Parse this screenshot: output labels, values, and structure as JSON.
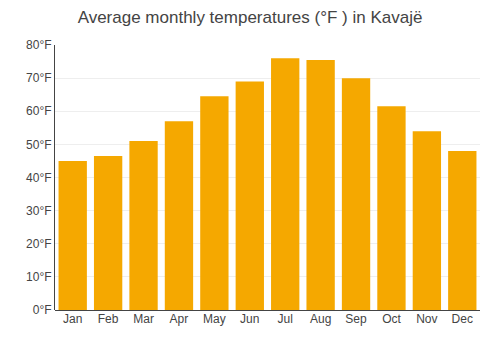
{
  "chart_data": {
    "type": "bar",
    "title": "Average monthly temperatures (°F ) in Kavajë",
    "categories": [
      "Jan",
      "Feb",
      "Mar",
      "Apr",
      "May",
      "Jun",
      "Jul",
      "Aug",
      "Sep",
      "Oct",
      "Nov",
      "Dec"
    ],
    "values": [
      45.0,
      46.5,
      51.0,
      57.0,
      64.5,
      69.0,
      76.0,
      75.5,
      70.0,
      61.5,
      54.0,
      48.0
    ],
    "color": "#F5A800",
    "ylim": [
      0,
      80
    ],
    "yticks": [
      {
        "value": 0,
        "label": "0°F"
      },
      {
        "value": 10,
        "label": "10°F"
      },
      {
        "value": 20,
        "label": "20°F"
      },
      {
        "value": 30,
        "label": "30°F"
      },
      {
        "value": 40,
        "label": "40°F"
      },
      {
        "value": 50,
        "label": "50°F"
      },
      {
        "value": 60,
        "label": "60°F"
      },
      {
        "value": 70,
        "label": "70°F"
      },
      {
        "value": 80,
        "label": "80°F"
      }
    ],
    "grid": true
  }
}
